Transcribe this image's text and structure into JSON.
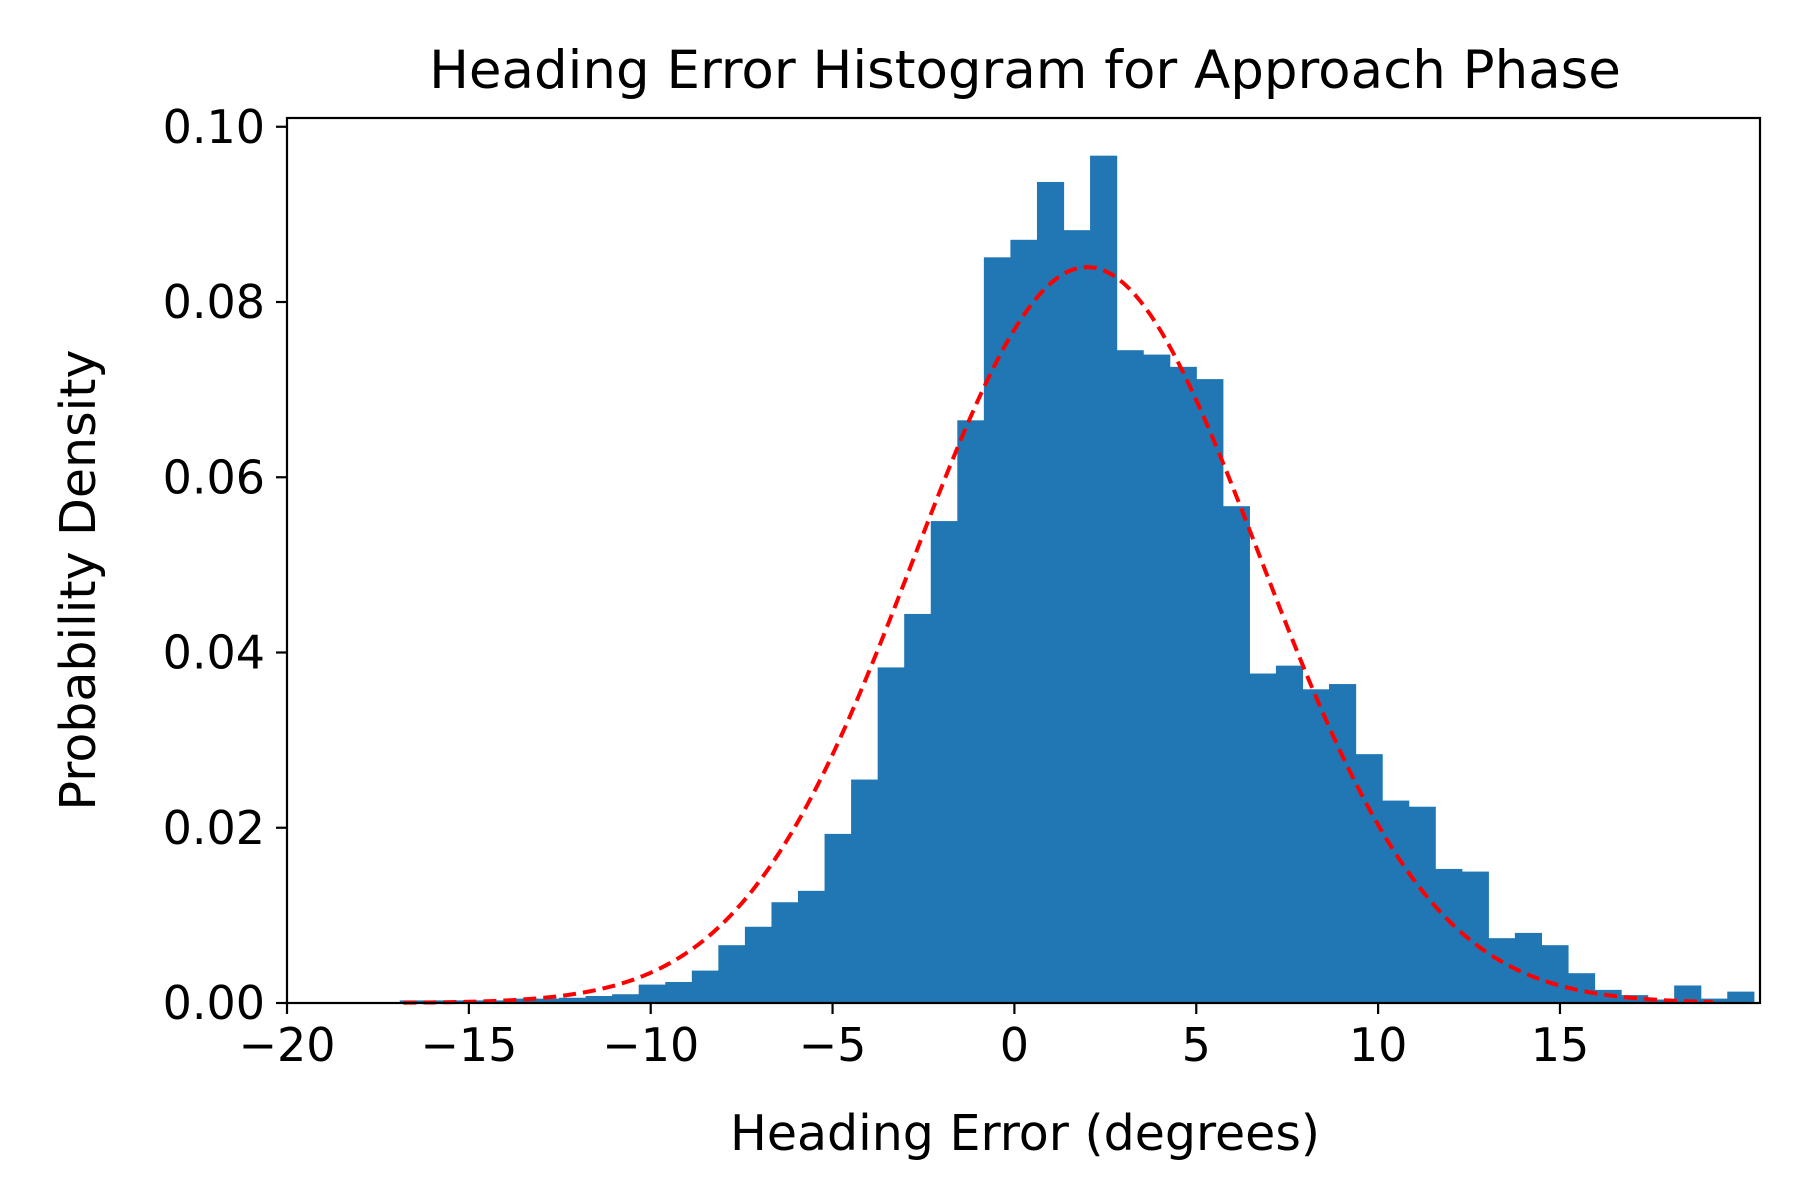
{
  "chart_data": {
    "type": "bar",
    "title": "Heading Error Histogram for Approach Phase",
    "xlabel": "Heading Error (degrees)",
    "ylabel": "Probability Density",
    "xlim": [
      -20,
      20.5
    ],
    "ylim": [
      0,
      0.101
    ],
    "x_ticks": [
      -20,
      -15,
      -10,
      -5,
      0,
      5,
      10,
      15
    ],
    "x_tick_labels": [
      "−20",
      "−15",
      "−10",
      "−5",
      "0",
      "5",
      "10",
      "15"
    ],
    "y_ticks": [
      0,
      0.02,
      0.04,
      0.06,
      0.08,
      0.1
    ],
    "y_tick_labels": [
      "0.00",
      "0.02",
      "0.04",
      "0.06",
      "0.08",
      "0.10"
    ],
    "grid": false,
    "bar_color": "#2077b4",
    "fit_color": "#ff0000",
    "bin_start": -16.9,
    "bin_width": 0.73,
    "values": [
      0.0003,
      0.0003,
      0.0003,
      0.0003,
      0.0005,
      0.0005,
      0.0006,
      0.0008,
      0.001,
      0.0021,
      0.0024,
      0.0037,
      0.0066,
      0.0087,
      0.0115,
      0.0128,
      0.0193,
      0.0255,
      0.0383,
      0.0444,
      0.055,
      0.0665,
      0.0851,
      0.0871,
      0.0937,
      0.0882,
      0.0967,
      0.0745,
      0.074,
      0.0726,
      0.0712,
      0.0567,
      0.0376,
      0.0385,
      0.0358,
      0.0364,
      0.0284,
      0.0231,
      0.0224,
      0.0153,
      0.015,
      0.0074,
      0.008,
      0.0066,
      0.0034,
      0.0015,
      0.0009,
      0.0004,
      0.002,
      0.0005,
      0.0013
    ],
    "series": [
      {
        "type": "line",
        "style": "dashed",
        "x_range": [
          -16.8,
          19.2
        ],
        "mean": 2.0,
        "std": 4.75
      }
    ]
  }
}
